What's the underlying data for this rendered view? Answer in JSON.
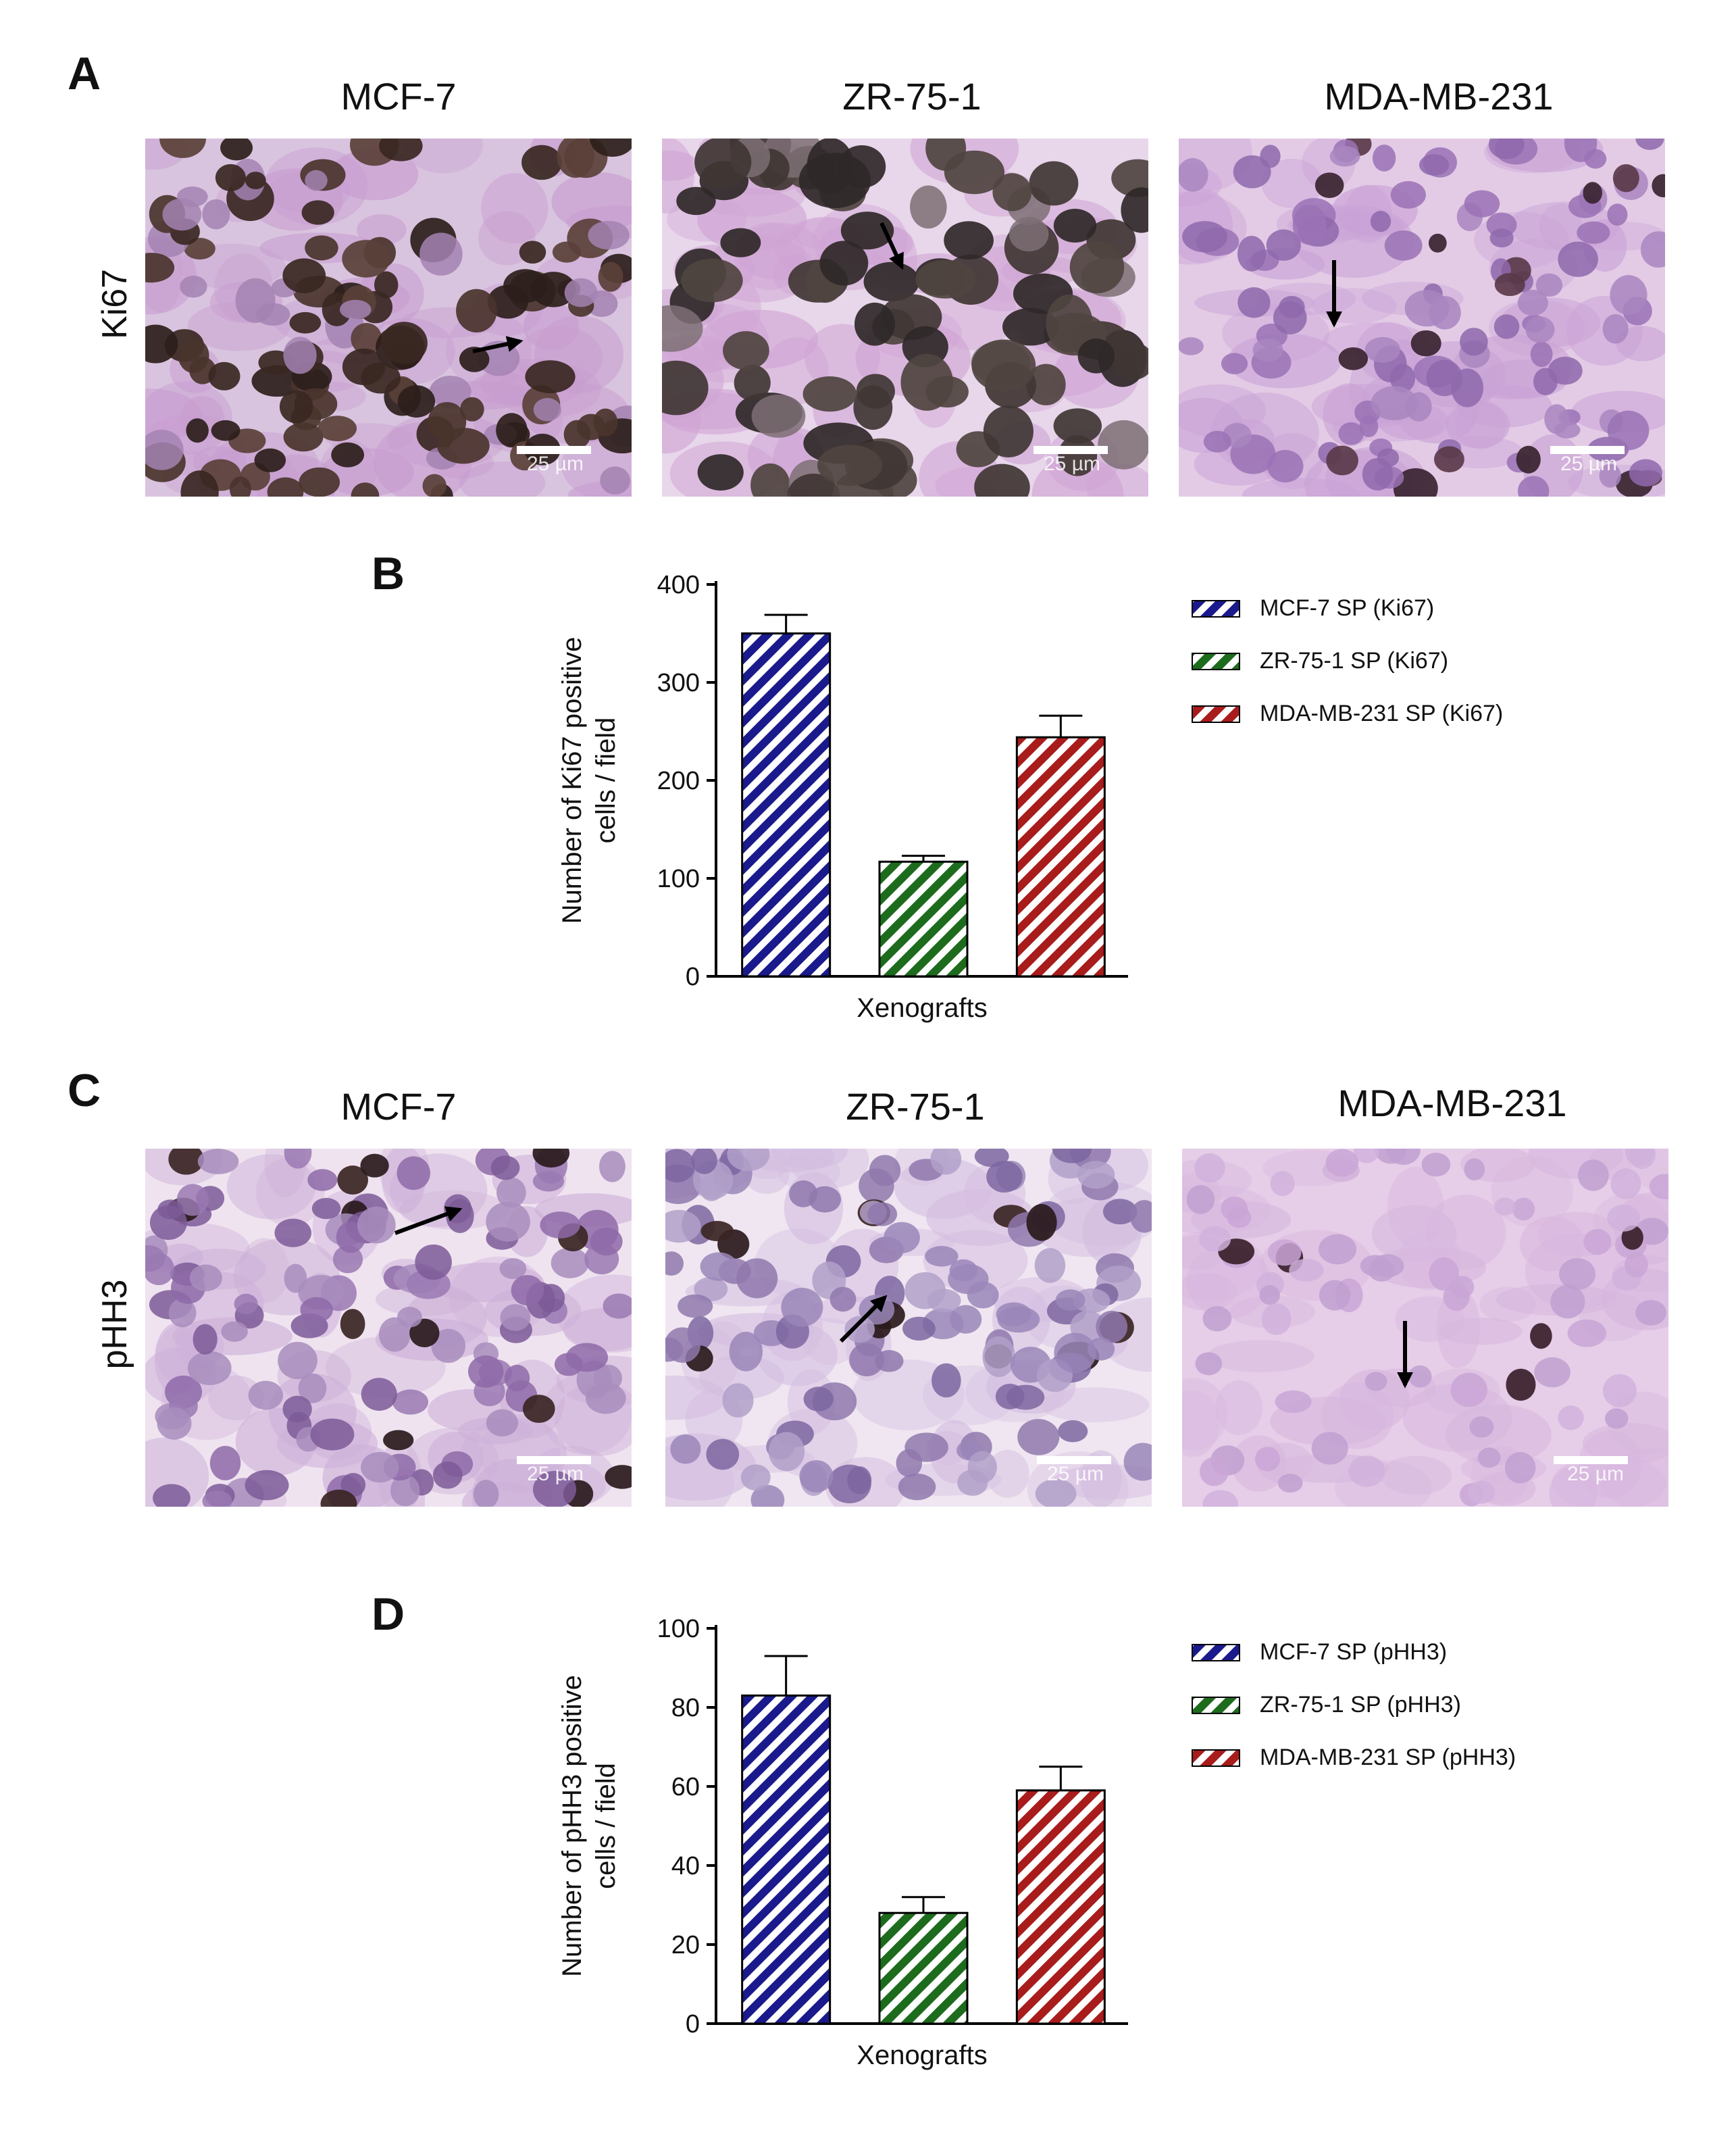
{
  "figure": {
    "panel_labels": {
      "A": "A",
      "B": "B",
      "C": "C",
      "D": "D"
    },
    "cell_lines": [
      "MCF-7",
      "ZR-75-1",
      "MDA-MB-231"
    ],
    "row_labels": {
      "ki67": "Ki67",
      "phh3": "pHH3"
    },
    "scale_bar_text": "25 µm",
    "stain_colors": {
      "hematoxylin_bg": "#c9a6d2",
      "ki67_nucleus": "#3b2a24",
      "phh3_nucleus": "#2a1a1c",
      "light_nucleus": "#8f6aa3"
    }
  },
  "chart_data": [
    {
      "type": "bar",
      "panel": "B",
      "categories": [
        "MCF-7 SP (Ki67)",
        "ZR-75-1 SP (Ki67)",
        "MDA-MB-231 SP (Ki67)"
      ],
      "values": [
        350,
        117,
        244
      ],
      "errors": [
        19,
        6,
        22
      ],
      "colors": [
        "#1a1a8c",
        "#1d6b1d",
        "#a81c1c"
      ],
      "hatch": "diagonal",
      "xlabel": "Xenografts",
      "ylabel_lines": [
        "Number of Ki67 positive",
        "cells / field"
      ],
      "ylim": [
        0,
        400
      ],
      "yticks": [
        "0",
        "100",
        "200",
        "300",
        "400"
      ],
      "legend": [
        "MCF-7 SP (Ki67)",
        "ZR-75-1 SP (Ki67)",
        "MDA-MB-231 SP (Ki67)"
      ],
      "legend_position": "right",
      "grid": false
    },
    {
      "type": "bar",
      "panel": "D",
      "categories": [
        "MCF-7 SP (pHH3)",
        "ZR-75-1 SP (pHH3)",
        "MDA-MB-231 SP (pHH3)"
      ],
      "values": [
        83,
        28,
        59
      ],
      "errors": [
        10,
        4,
        6
      ],
      "colors": [
        "#1a1a8c",
        "#1d6b1d",
        "#a81c1c"
      ],
      "hatch": "diagonal",
      "xlabel": "Xenografts",
      "ylabel_lines": [
        "Number of pHH3 positive",
        "cells / field"
      ],
      "ylim": [
        0,
        100
      ],
      "yticks": [
        "0",
        "20",
        "40",
        "60",
        "80",
        "100"
      ],
      "legend": [
        "MCF-7 SP (pHH3)",
        "ZR-75-1 SP (pHH3)",
        "MDA-MB-231 SP (pHH3)"
      ],
      "legend_position": "right",
      "grid": false
    }
  ]
}
